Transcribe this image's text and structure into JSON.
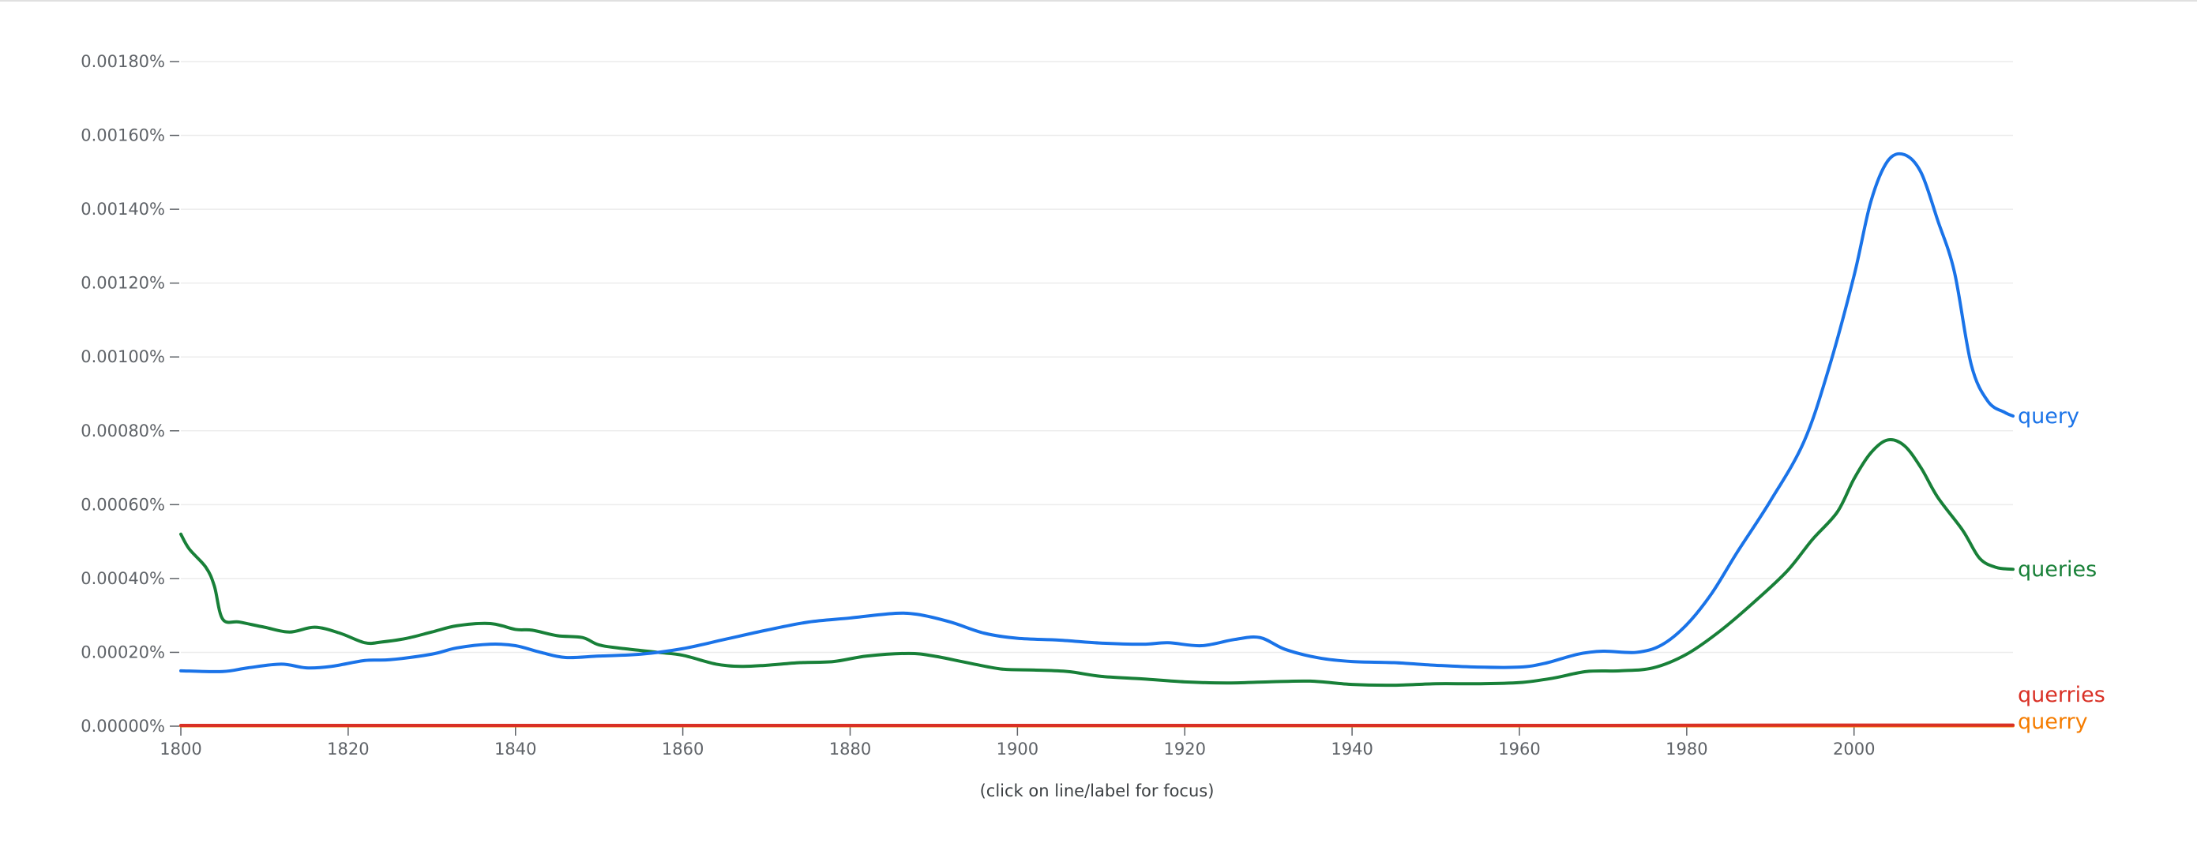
{
  "chart_data": {
    "type": "line",
    "title": "",
    "xlabel": "",
    "ylabel": "",
    "xlim": [
      1800,
      2019
    ],
    "ylim": [
      0,
      0.0018
    ],
    "x_ticks": [
      1800,
      1820,
      1840,
      1860,
      1880,
      1900,
      1920,
      1940,
      1960,
      1980,
      2000
    ],
    "y_ticks": [
      {
        "value": 0.0,
        "label": "0.00000%"
      },
      {
        "value": 0.0002,
        "label": "0.00020%"
      },
      {
        "value": 0.0004,
        "label": "0.00040%"
      },
      {
        "value": 0.0006,
        "label": "0.00060%"
      },
      {
        "value": 0.0008,
        "label": "0.00080%"
      },
      {
        "value": 0.001,
        "label": "0.00100%"
      },
      {
        "value": 0.0012,
        "label": "0.00120%"
      },
      {
        "value": 0.0014,
        "label": "0.00140%"
      },
      {
        "value": 0.0016,
        "label": "0.00160%"
      },
      {
        "value": 0.0018,
        "label": "0.00180%"
      }
    ],
    "grid": true,
    "legend": "end-of-line labels (right)",
    "series": [
      {
        "name": "query",
        "color": "#1a73e8",
        "points": [
          [
            1800,
            0.00015
          ],
          [
            1805,
            0.000148
          ],
          [
            1808,
            0.000158
          ],
          [
            1812,
            0.000168
          ],
          [
            1815,
            0.000158
          ],
          [
            1818,
            0.000162
          ],
          [
            1822,
            0.000178
          ],
          [
            1825,
            0.00018
          ],
          [
            1830,
            0.000195
          ],
          [
            1833,
            0.000212
          ],
          [
            1837,
            0.000222
          ],
          [
            1840,
            0.000218
          ],
          [
            1843,
            0.0002
          ],
          [
            1846,
            0.000186
          ],
          [
            1850,
            0.00019
          ],
          [
            1855,
            0.000195
          ],
          [
            1860,
            0.00021
          ],
          [
            1865,
            0.000235
          ],
          [
            1870,
            0.00026
          ],
          [
            1875,
            0.000282
          ],
          [
            1880,
            0.000293
          ],
          [
            1885,
            0.000305
          ],
          [
            1888,
            0.000303
          ],
          [
            1892,
            0.000282
          ],
          [
            1896,
            0.000252
          ],
          [
            1900,
            0.000238
          ],
          [
            1905,
            0.000233
          ],
          [
            1910,
            0.000225
          ],
          [
            1915,
            0.000222
          ],
          [
            1918,
            0.000226
          ],
          [
            1922,
            0.000218
          ],
          [
            1926,
            0.000235
          ],
          [
            1929,
            0.00024
          ],
          [
            1932,
            0.000208
          ],
          [
            1936,
            0.000185
          ],
          [
            1940,
            0.000175
          ],
          [
            1945,
            0.000172
          ],
          [
            1950,
            0.000165
          ],
          [
            1955,
            0.00016
          ],
          [
            1960,
            0.00016
          ],
          [
            1963,
            0.00017
          ],
          [
            1967,
            0.000195
          ],
          [
            1970,
            0.000203
          ],
          [
            1974,
            0.0002
          ],
          [
            1977,
            0.00022
          ],
          [
            1980,
            0.000275
          ],
          [
            1983,
            0.00036
          ],
          [
            1986,
            0.00047
          ],
          [
            1990,
            0.00061
          ],
          [
            1994,
            0.00077
          ],
          [
            1997,
            0.00097
          ],
          [
            2000,
            0.00122
          ],
          [
            2002,
            0.00142
          ],
          [
            2004,
            0.00153
          ],
          [
            2006,
            0.001548
          ],
          [
            2008,
            0.0015
          ],
          [
            2010,
            0.00137
          ],
          [
            2012,
            0.00123
          ],
          [
            2014,
            0.00098
          ],
          [
            2016,
            0.00088
          ],
          [
            2018,
            0.00085
          ],
          [
            2019,
            0.00084
          ]
        ]
      },
      {
        "name": "queries",
        "color": "#188038",
        "points": [
          [
            1800,
            0.00052
          ],
          [
            1801,
            0.00048
          ],
          [
            1803,
            0.00043
          ],
          [
            1804,
            0.00038
          ],
          [
            1805,
            0.00029
          ],
          [
            1807,
            0.000282
          ],
          [
            1810,
            0.000268
          ],
          [
            1813,
            0.000255
          ],
          [
            1816,
            0.000268
          ],
          [
            1819,
            0.000252
          ],
          [
            1822,
            0.000226
          ],
          [
            1824,
            0.000228
          ],
          [
            1827,
            0.000238
          ],
          [
            1830,
            0.000255
          ],
          [
            1833,
            0.000272
          ],
          [
            1837,
            0.000278
          ],
          [
            1840,
            0.000262
          ],
          [
            1842,
            0.00026
          ],
          [
            1845,
            0.000245
          ],
          [
            1848,
            0.00024
          ],
          [
            1850,
            0.00022
          ],
          [
            1853,
            0.00021
          ],
          [
            1857,
            0.0002
          ],
          [
            1860,
            0.000192
          ],
          [
            1864,
            0.000168
          ],
          [
            1867,
            0.000162
          ],
          [
            1870,
            0.000165
          ],
          [
            1874,
            0.000172
          ],
          [
            1878,
            0.000175
          ],
          [
            1882,
            0.00019
          ],
          [
            1887,
            0.000197
          ],
          [
            1890,
            0.00019
          ],
          [
            1894,
            0.000172
          ],
          [
            1898,
            0.000155
          ],
          [
            1902,
            0.000152
          ],
          [
            1906,
            0.000148
          ],
          [
            1910,
            0.000135
          ],
          [
            1915,
            0.000128
          ],
          [
            1920,
            0.00012
          ],
          [
            1925,
            0.000117
          ],
          [
            1930,
            0.00012
          ],
          [
            1935,
            0.000122
          ],
          [
            1940,
            0.000113
          ],
          [
            1945,
            0.000111
          ],
          [
            1950,
            0.000115
          ],
          [
            1955,
            0.000115
          ],
          [
            1960,
            0.000118
          ],
          [
            1964,
            0.00013
          ],
          [
            1968,
            0.000148
          ],
          [
            1972,
            0.00015
          ],
          [
            1976,
            0.000158
          ],
          [
            1980,
            0.000195
          ],
          [
            1984,
            0.000258
          ],
          [
            1988,
            0.000335
          ],
          [
            1992,
            0.00042
          ],
          [
            1995,
            0.000505
          ],
          [
            1998,
            0.00058
          ],
          [
            2000,
            0.00067
          ],
          [
            2002,
            0.00074
          ],
          [
            2004,
            0.000775
          ],
          [
            2006,
            0.00076
          ],
          [
            2008,
            0.0007
          ],
          [
            2010,
            0.00062
          ],
          [
            2013,
            0.00053
          ],
          [
            2015,
            0.000455
          ],
          [
            2017,
            0.00043
          ],
          [
            2019,
            0.000425
          ]
        ]
      },
      {
        "name": "querries",
        "color": "#d93025",
        "points": [
          [
            1800,
            2e-06
          ],
          [
            1900,
            2e-06
          ],
          [
            1960,
            2e-06
          ],
          [
            2000,
            3e-06
          ],
          [
            2019,
            3e-06
          ]
        ]
      },
      {
        "name": "querry",
        "color": "#f57c00",
        "points": [
          [
            1800,
            1e-06
          ],
          [
            1900,
            1e-06
          ],
          [
            1960,
            1e-06
          ],
          [
            2000,
            1e-06
          ],
          [
            2019,
            1e-06
          ]
        ]
      }
    ],
    "note": "(click on line/label for focus)"
  }
}
